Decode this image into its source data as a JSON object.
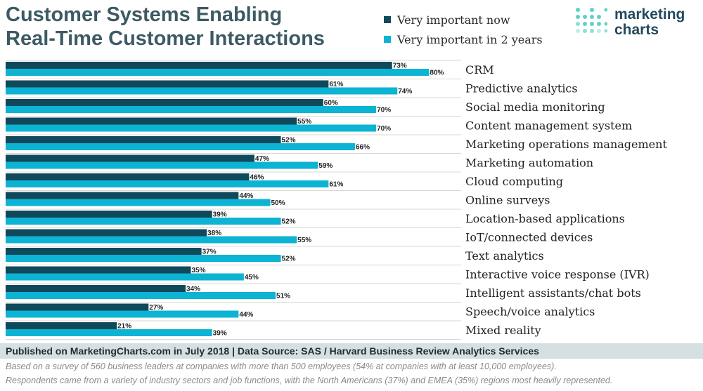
{
  "colors": {
    "now": "#10495c",
    "future": "#0db3d3",
    "title": "#3d5a63",
    "logo_text": "#234a5c"
  },
  "logo": {
    "line1": "marketing",
    "line2": "charts"
  },
  "chart_data": {
    "type": "bar",
    "orientation": "horizontal",
    "title": "Customer Systems Enabling Real-Time Customer Interactions",
    "title_lines": [
      "Customer Systems Enabling",
      "Real-Time Customer Interactions"
    ],
    "xlim": [
      0,
      100
    ],
    "value_suffix": "%",
    "categories": [
      "CRM",
      "Predictive analytics",
      "Social media monitoring",
      "Content management system",
      "Marketing operations management",
      "Marketing automation",
      "Cloud computing",
      "Online surveys",
      "Location-based applications",
      "IoT/connected devices",
      "Text analytics",
      "Interactive voice response (IVR)",
      "Intelligent assistants/chat bots",
      "Speech/voice analytics",
      "Mixed reality"
    ],
    "series": [
      {
        "name": "Very important now",
        "values": [
          73,
          61,
          60,
          55,
          52,
          47,
          46,
          44,
          39,
          38,
          37,
          35,
          34,
          27,
          21
        ]
      },
      {
        "name": "Very important in 2 years",
        "values": [
          80,
          74,
          70,
          70,
          66,
          59,
          61,
          50,
          52,
          55,
          52,
          45,
          51,
          44,
          39
        ]
      }
    ],
    "legend_position": "top-right"
  },
  "footer": {
    "source": "Published on MarketingCharts.com in July 2018 | Data Source: SAS / Harvard Business Review Analytics Services",
    "note1": "Based on a survey of 560 business leaders at companies with more than 500 employees (54% at companies with at least 10,000 employees).",
    "note2": "Respondents came from a variety of industry sectors and job functions, with the North Americans (37%) and EMEA (35%) regions most heavily represented."
  }
}
